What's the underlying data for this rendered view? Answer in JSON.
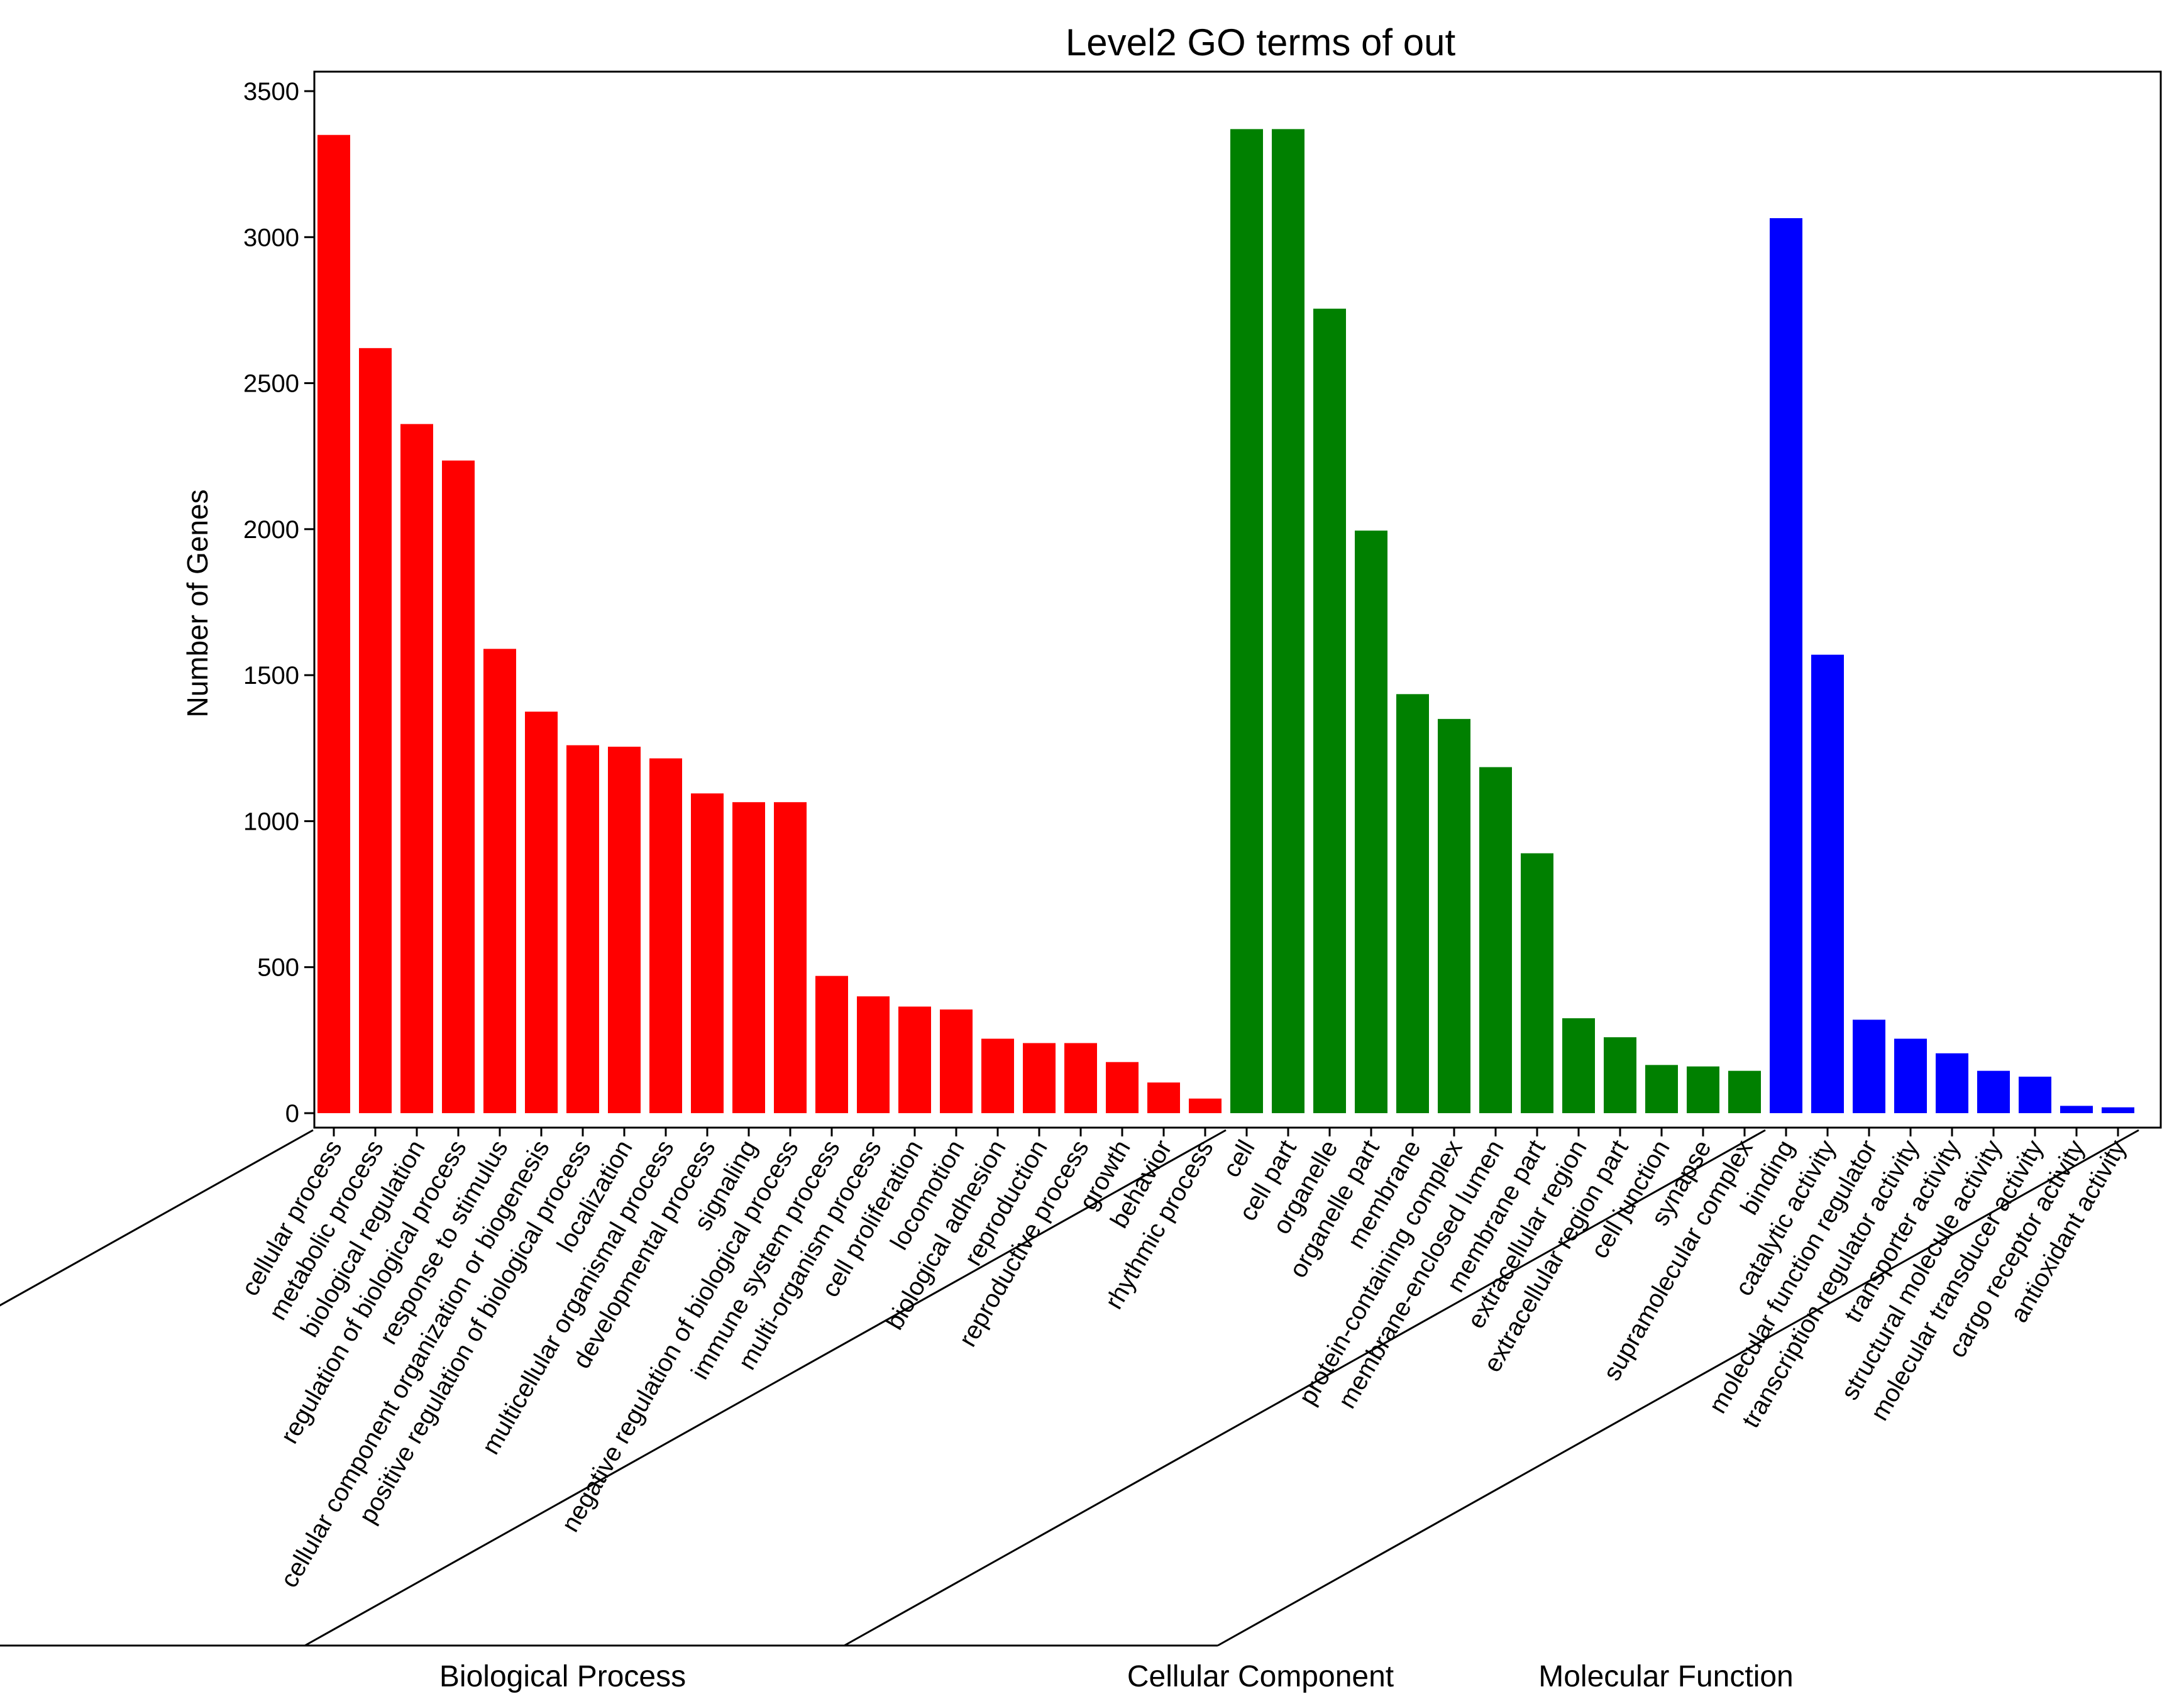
{
  "chart_data": {
    "type": "bar",
    "title": "Level2 GO terms of out",
    "xlabel": "",
    "ylabel": "Number of Genes",
    "ylim": [
      0,
      3550
    ],
    "yticks": [
      0,
      500,
      1000,
      1500,
      2000,
      2500,
      3000,
      3500
    ],
    "grid": false,
    "groups": [
      {
        "name": "Biological Process",
        "color": "#ff0000",
        "categories": [
          "cellular process",
          "metabolic process",
          "biological regulation",
          "regulation of biological process",
          "response to stimulus",
          "cellular component organization or biogenesis",
          "positive regulation of biological process",
          "localization",
          "multicellular organismal process",
          "developmental process",
          "signaling",
          "negative regulation of biological process",
          "immune system process",
          "multi-organism process",
          "cell proliferation",
          "locomotion",
          "biological adhesion",
          "reproduction",
          "reproductive process",
          "growth",
          "behavior",
          "rhythmic process"
        ],
        "values": [
          3350,
          2620,
          2360,
          2235,
          1590,
          1375,
          1260,
          1255,
          1215,
          1095,
          1065,
          1065,
          470,
          400,
          365,
          355,
          255,
          240,
          240,
          175,
          105,
          50
        ]
      },
      {
        "name": "Cellular Component",
        "color": "#008000",
        "categories": [
          "cell",
          "cell part",
          "organelle",
          "organelle part",
          "membrane",
          "protein-containing complex",
          "membrane-enclosed lumen",
          "membrane part",
          "extracellular region",
          "extracellular region part",
          "cell junction",
          "synapse",
          "supramolecular complex"
        ],
        "values": [
          3370,
          3370,
          2755,
          1995,
          1435,
          1350,
          1185,
          890,
          325,
          260,
          165,
          160,
          145
        ]
      },
      {
        "name": "Molecular Function",
        "color": "#0000ff",
        "categories": [
          "binding",
          "catalytic activity",
          "molecular function regulator",
          "transcription regulator activity",
          "transporter activity",
          "structural molecule activity",
          "molecular transducer activity",
          "cargo receptor activity",
          "antioxidant activity"
        ],
        "values": [
          3065,
          1570,
          320,
          255,
          205,
          145,
          125,
          25,
          20
        ]
      }
    ]
  }
}
